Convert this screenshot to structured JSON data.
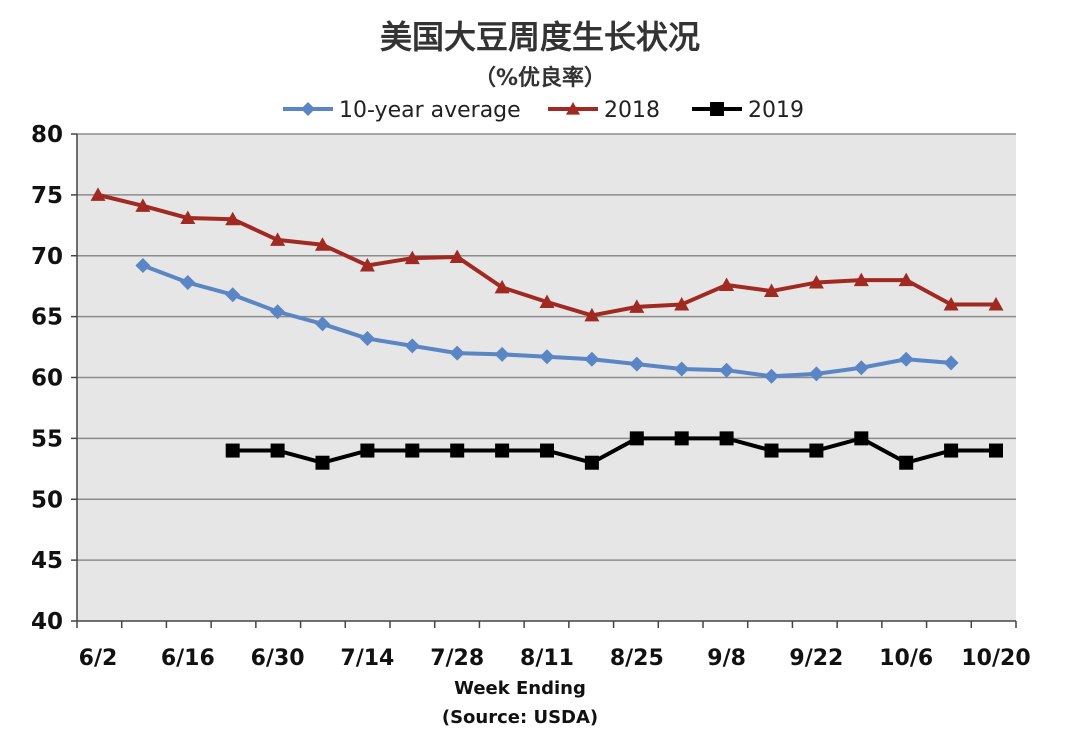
{
  "chart_data": {
    "type": "line",
    "title": "美国大豆周度生长状况",
    "subtitle": "（%优良率）",
    "xlabel": "Week Ending",
    "source": "(Source: USDA)",
    "ylim": [
      40,
      80
    ],
    "ytick_step": 5,
    "grid": true,
    "legend_position": "top",
    "x": [
      "6/2",
      "6/9",
      "6/16",
      "6/23",
      "6/30",
      "7/7",
      "7/14",
      "7/21",
      "7/28",
      "8/4",
      "8/11",
      "8/18",
      "8/25",
      "9/1",
      "9/8",
      "9/15",
      "9/22",
      "9/29",
      "10/6",
      "10/13",
      "10/20"
    ],
    "xtick_labels": [
      "6/2",
      "6/16",
      "6/30",
      "7/14",
      "7/28",
      "8/11",
      "8/25",
      "9/8",
      "9/22",
      "10/6",
      "10/20"
    ],
    "series": [
      {
        "name": "10-year average",
        "color": "#5b86c5",
        "marker": "diamond",
        "values": [
          null,
          69.2,
          67.8,
          66.8,
          65.4,
          64.4,
          63.2,
          62.6,
          62.0,
          61.9,
          61.7,
          61.5,
          61.1,
          60.7,
          60.6,
          60.1,
          60.3,
          60.8,
          61.5,
          61.2,
          null
        ]
      },
      {
        "name": "2018",
        "color": "#a02a22",
        "marker": "triangle",
        "values": [
          75,
          74.1,
          73.1,
          73.0,
          71.3,
          70.9,
          69.2,
          69.8,
          69.9,
          67.4,
          66.2,
          65.1,
          65.8,
          66.0,
          67.6,
          67.1,
          67.8,
          68.0,
          68.0,
          66.0,
          66.0
        ]
      },
      {
        "name": "2019",
        "color": "#000000",
        "marker": "square",
        "values": [
          null,
          null,
          null,
          54,
          54,
          53,
          54,
          54,
          54,
          54,
          54,
          53,
          55,
          55,
          55,
          54,
          54,
          55,
          53,
          54,
          54
        ]
      }
    ]
  }
}
